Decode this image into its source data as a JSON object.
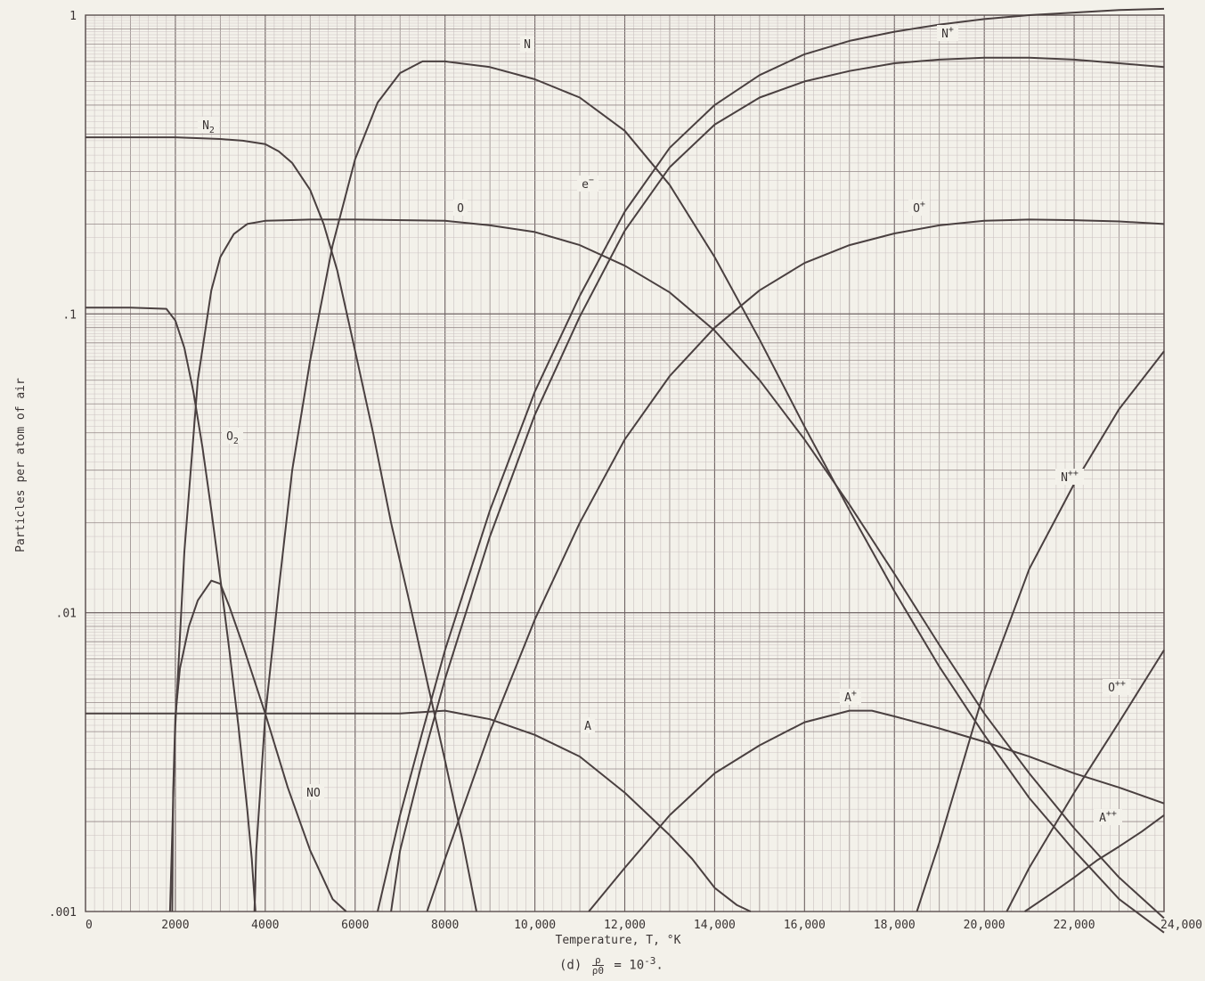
{
  "chart_data": {
    "type": "line",
    "xlabel": "Temperature, T, ",
    "xlabel_unit": "°K",
    "ylabel": "Particles per atom of air",
    "xlim": [
      0,
      24000
    ],
    "ylim": [
      0.001,
      1
    ],
    "y_scale": "log",
    "grid": true,
    "x_ticks": [
      "0",
      "2000",
      "4000",
      "6000",
      "8000",
      "10,000",
      "12,000",
      "14,000",
      "16,000",
      "18,000",
      "20,000",
      "22,000",
      "24,000"
    ],
    "y_ticks": [
      "1",
      ".1",
      ".01",
      ".001"
    ],
    "series": [
      {
        "name": "N2",
        "label_base": "N",
        "label_sub": "2",
        "label_sup": "",
        "x": [
          0,
          1000,
          2000,
          3000,
          3500,
          4000,
          4300,
          4600,
          5000,
          5300,
          5600,
          6000,
          6400,
          6800,
          7200,
          7600,
          8000,
          8400,
          8700
        ],
        "y": [
          0.39,
          0.39,
          0.39,
          0.385,
          0.38,
          0.37,
          0.35,
          0.32,
          0.26,
          0.2,
          0.14,
          0.075,
          0.04,
          0.02,
          0.011,
          0.0059,
          0.0032,
          0.0017,
          0.001
        ]
      },
      {
        "name": "O2",
        "label_base": "O",
        "label_sub": "2",
        "label_sup": "",
        "x": [
          0,
          1000,
          1800,
          2000,
          2200,
          2400,
          2600,
          2800,
          3000,
          3200,
          3400,
          3600,
          3700,
          3780
        ],
        "y": [
          0.105,
          0.105,
          0.104,
          0.095,
          0.077,
          0.055,
          0.036,
          0.022,
          0.013,
          0.0075,
          0.0042,
          0.0022,
          0.0015,
          0.001
        ]
      },
      {
        "name": "NO",
        "label_base": "NO",
        "label_sub": "",
        "label_sup": "",
        "x": [
          1930,
          1950,
          2000,
          2100,
          2300,
          2500,
          2800,
          3000,
          3200,
          3500,
          4000,
          4500,
          5000,
          5500,
          5800
        ],
        "y": [
          0.001,
          0.0025,
          0.0045,
          0.0065,
          0.009,
          0.011,
          0.0128,
          0.0125,
          0.0105,
          0.0078,
          0.0046,
          0.0026,
          0.0016,
          0.0011,
          0.001
        ]
      },
      {
        "name": "O",
        "label_base": "O",
        "label_sub": "",
        "label_sup": "",
        "x": [
          1880,
          2000,
          2200,
          2500,
          2800,
          3000,
          3300,
          3600,
          4000,
          4500,
          5000,
          6000,
          8000,
          9000,
          10000,
          11000,
          12000,
          13000,
          14000,
          15000,
          16000,
          17000,
          18000,
          19000,
          20000,
          21000,
          22000,
          23000,
          24000
        ],
        "y": [
          0.001,
          0.0042,
          0.016,
          0.06,
          0.12,
          0.155,
          0.185,
          0.2,
          0.205,
          0.206,
          0.207,
          0.207,
          0.205,
          0.198,
          0.188,
          0.17,
          0.145,
          0.118,
          0.088,
          0.06,
          0.038,
          0.023,
          0.0135,
          0.0078,
          0.0046,
          0.0029,
          0.0019,
          0.0013,
          0.00095
        ]
      },
      {
        "name": "N",
        "label_base": "N",
        "label_sub": "",
        "label_sup": "",
        "x": [
          3760,
          3800,
          4000,
          4300,
          4600,
          5000,
          5500,
          6000,
          6500,
          7000,
          7500,
          8000,
          9000,
          10000,
          11000,
          12000,
          13000,
          14000,
          15000,
          16000,
          17000,
          18000,
          19000,
          20000,
          21000,
          22000,
          23000,
          24000
        ],
        "y": [
          0.001,
          0.0016,
          0.0045,
          0.012,
          0.03,
          0.07,
          0.17,
          0.33,
          0.51,
          0.64,
          0.7,
          0.7,
          0.67,
          0.61,
          0.53,
          0.41,
          0.27,
          0.155,
          0.082,
          0.042,
          0.022,
          0.0118,
          0.0066,
          0.0039,
          0.0024,
          0.0016,
          0.0011,
          0.00085
        ]
      },
      {
        "name": "e-",
        "label_base": "e",
        "label_sub": "",
        "label_sup": "−",
        "x": [
          6500,
          7000,
          7500,
          8000,
          9000,
          10000,
          11000,
          12000,
          13000,
          14000,
          15000,
          16000,
          17000,
          18000,
          19000,
          20000,
          21000,
          22000,
          23000,
          24000
        ],
        "y": [
          0.001,
          0.0021,
          0.004,
          0.0075,
          0.022,
          0.055,
          0.115,
          0.22,
          0.36,
          0.5,
          0.63,
          0.74,
          0.82,
          0.88,
          0.93,
          0.97,
          1.0,
          1.02,
          1.04,
          1.05
        ]
      },
      {
        "name": "N+",
        "label_base": "N",
        "label_sub": "",
        "label_sup": "+",
        "x": [
          6800,
          7000,
          7500,
          8000,
          9000,
          10000,
          11000,
          12000,
          13000,
          14000,
          15000,
          16000,
          17000,
          18000,
          19000,
          20000,
          21000,
          22000,
          23000,
          24000
        ],
        "y": [
          0.001,
          0.0016,
          0.0032,
          0.006,
          0.018,
          0.046,
          0.098,
          0.19,
          0.31,
          0.43,
          0.53,
          0.6,
          0.65,
          0.69,
          0.71,
          0.72,
          0.72,
          0.71,
          0.69,
          0.67
        ]
      },
      {
        "name": "O+",
        "label_base": "O",
        "label_sub": "",
        "label_sup": "+",
        "x": [
          7600,
          8000,
          9000,
          10000,
          11000,
          12000,
          13000,
          14000,
          15000,
          16000,
          17000,
          18000,
          19000,
          20000,
          21000,
          22000,
          23000,
          24000
        ],
        "y": [
          0.001,
          0.0015,
          0.004,
          0.0095,
          0.02,
          0.038,
          0.062,
          0.09,
          0.12,
          0.148,
          0.17,
          0.186,
          0.198,
          0.205,
          0.207,
          0.206,
          0.204,
          0.2
        ]
      },
      {
        "name": "A",
        "label_base": "A",
        "label_sub": "",
        "label_sup": "",
        "x": [
          0,
          2000,
          4000,
          6000,
          7000,
          8000,
          9000,
          10000,
          11000,
          12000,
          13000,
          13500,
          14000,
          14500,
          14800
        ],
        "y": [
          0.0046,
          0.0046,
          0.0046,
          0.0046,
          0.0046,
          0.0047,
          0.0044,
          0.0039,
          0.0033,
          0.0025,
          0.0018,
          0.0015,
          0.0012,
          0.00105,
          0.001
        ]
      },
      {
        "name": "A+",
        "label_base": "A",
        "label_sub": "",
        "label_sup": "+",
        "x": [
          11200,
          12000,
          13000,
          14000,
          15000,
          16000,
          17000,
          17500,
          18000,
          19000,
          20000,
          21000,
          22000,
          23000,
          24000
        ],
        "y": [
          0.001,
          0.0014,
          0.0021,
          0.0029,
          0.0036,
          0.0043,
          0.0047,
          0.0047,
          0.0045,
          0.0041,
          0.0037,
          0.0033,
          0.0029,
          0.0026,
          0.0023
        ]
      },
      {
        "name": "N++",
        "label_base": "N",
        "label_sub": "",
        "label_sup": "++",
        "x": [
          18500,
          19000,
          20000,
          21000,
          22000,
          23000,
          24000
        ],
        "y": [
          0.001,
          0.0017,
          0.0055,
          0.014,
          0.027,
          0.048,
          0.075
        ]
      },
      {
        "name": "O++",
        "label_base": "O",
        "label_sub": "",
        "label_sup": "++",
        "x": [
          20500,
          21000,
          22000,
          23000,
          24000
        ],
        "y": [
          0.001,
          0.0014,
          0.0025,
          0.0043,
          0.0075
        ]
      },
      {
        "name": "A++",
        "label_base": "A",
        "label_sub": "",
        "label_sup": "++",
        "x": [
          20900,
          21500,
          22000,
          22500,
          23000,
          23500,
          24000
        ],
        "y": [
          0.001,
          0.00115,
          0.0013,
          0.00148,
          0.00165,
          0.00185,
          0.0021
        ]
      }
    ]
  },
  "caption": {
    "prefix": "(d)",
    "frac_num": "ρ",
    "frac_den": "ρ0",
    "suffix": " = 10",
    "exponent": "-3",
    "tail": "."
  }
}
